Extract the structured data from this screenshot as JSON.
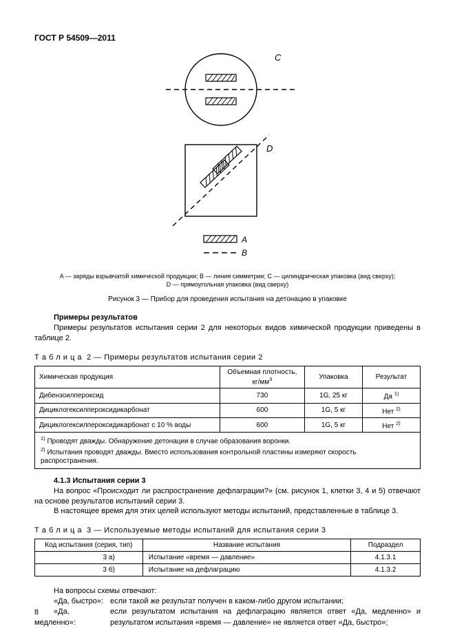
{
  "header": "ГОСТ Р 54509—2011",
  "figure": {
    "label_C": "C",
    "label_D": "D",
    "label_A": "A",
    "label_B": "B",
    "stroke": "#000000",
    "hatch_fill": "#000000",
    "bg": "#ffffff"
  },
  "legend_line1": "A — заряды взрывчатой химической продукции; B — линия симметрии; C — цилиндрическая упаковка (вид сверху);",
  "legend_line2": "D — прямоугольная упаковка (вид сверху)",
  "fig_title": "Рисунок 3 — Прибор для проведения испытания на детонацию в упаковке",
  "examples_heading": "Примеры результатов",
  "examples_text": "Примеры результатов испытания серии 2 для некоторых видов химической продукции приведены в таблице 2.",
  "table2_caption": "Т а б л и ц а  2 — Примеры результатов испытания серии 2",
  "table2": {
    "headers": [
      "Химическая продукция",
      "Объемная плотность, кг/мм",
      "Упаковка",
      "Результат"
    ],
    "header_sup": "3",
    "rows": [
      [
        "Дибензоилпероксид",
        "730",
        "1G, 25 кг",
        "Да",
        "1)"
      ],
      [
        "Дициклогексилпероксидикарбонат",
        "600",
        "1G, 5 кг",
        "Нет",
        "2)"
      ],
      [
        "Дициклогексилпероксидикарбонат с 10 % воды",
        "600",
        "1G, 5 кг",
        "Нет",
        "2)"
      ]
    ],
    "note1_sup": "1)",
    "note1": " Проводят дважды. Обнаружение детонации в случае образования воронки.",
    "note2_sup": "2)",
    "note2": " Испытания проводят дважды. Вместо использования контрольной пластины измеряют скорость распространения."
  },
  "section413_heading": "4.1.3 Испытания серии 3",
  "section413_p1": "На вопрос «Происходит ли распространение дефлаграции?» (см. рисунок 1, клетки 3, 4 и 5) отвечают на основе результатов испытаний серии 3.",
  "section413_p2": "В настоящее время для этих целей используют методы испытаний, представленные в таблице 3.",
  "table3_caption": "Т а б л и ц а  3 — Используемые методы испытаний для испытания серии 3",
  "table3": {
    "headers": [
      "Код испытания (серия, тип)",
      "Название испытания",
      "Подраздел"
    ],
    "rows": [
      [
        "3 а)",
        "Испытание «время — давление»",
        "4.1.3.1"
      ],
      [
        "3 б)",
        "Испытание на дефлаграцию",
        "4.1.3.2"
      ]
    ]
  },
  "answers_intro": "На вопросы схемы отвечают:",
  "answers": [
    {
      "label": "«Да, быстро»:",
      "text": "если такой же результат получен в каком-либо другом испытании;"
    },
    {
      "label": "«Да, медленно»:",
      "text": "если результатом испытания на дефлаграцию является ответ «Да, медленно» и результатом испытания «время — давление» не является ответ «Да, быстро»;"
    }
  ],
  "page_number": "8"
}
